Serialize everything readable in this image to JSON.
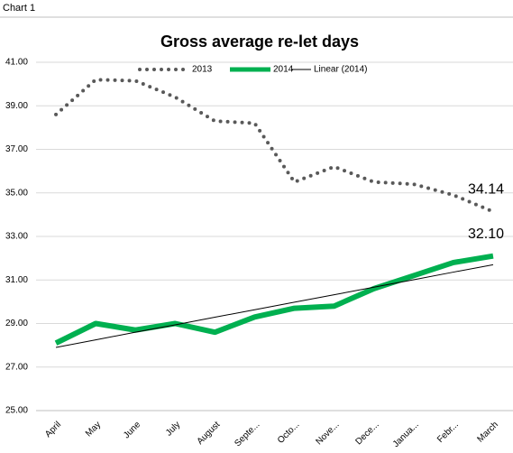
{
  "header": "Chart 1",
  "chart_data": {
    "type": "line",
    "title": "Gross average re-let days",
    "categories": [
      "April",
      "May",
      "June",
      "July",
      "August",
      "Septe...",
      "Octo...",
      "Nove...",
      "Dece...",
      "Janua...",
      "Febr...",
      "March"
    ],
    "series": [
      {
        "name": "2013",
        "color": "#595959",
        "style": "dotted",
        "values": [
          38.6,
          40.2,
          40.15,
          39.4,
          38.3,
          38.2,
          35.5,
          36.2,
          35.5,
          35.4,
          34.9,
          34.14
        ],
        "value_labels": [
          null,
          null,
          null,
          null,
          null,
          null,
          null,
          null,
          null,
          null,
          null,
          "34.14"
        ]
      },
      {
        "name": "2014",
        "color": "#00b050",
        "style": "thick",
        "values": [
          28.1,
          29.0,
          28.7,
          29.0,
          28.6,
          29.3,
          29.7,
          29.8,
          30.6,
          31.2,
          31.8,
          32.1
        ],
        "value_labels": [
          null,
          null,
          null,
          null,
          null,
          null,
          null,
          null,
          null,
          null,
          null,
          "32.10"
        ]
      },
      {
        "name": "Linear (2014)",
        "color": "#000000",
        "style": "thin",
        "values": [
          27.9,
          28.25,
          28.6,
          28.94,
          29.29,
          29.63,
          29.98,
          30.32,
          30.67,
          31.01,
          31.36,
          31.7
        ]
      }
    ],
    "ylim": [
      25,
      41
    ],
    "yticks": [
      {
        "value": 25,
        "label": "25.00"
      },
      {
        "value": 27,
        "label": "27.00"
      },
      {
        "value": 29,
        "label": "29.00"
      },
      {
        "value": 31,
        "label": "31.00"
      },
      {
        "value": 33,
        "label": "33.00"
      },
      {
        "value": 35,
        "label": "35.00"
      },
      {
        "value": 37,
        "label": "37.00"
      },
      {
        "value": 39,
        "label": "39.00"
      },
      {
        "value": 41,
        "label": "41.00"
      }
    ],
    "grid": true,
    "legend": "top"
  }
}
